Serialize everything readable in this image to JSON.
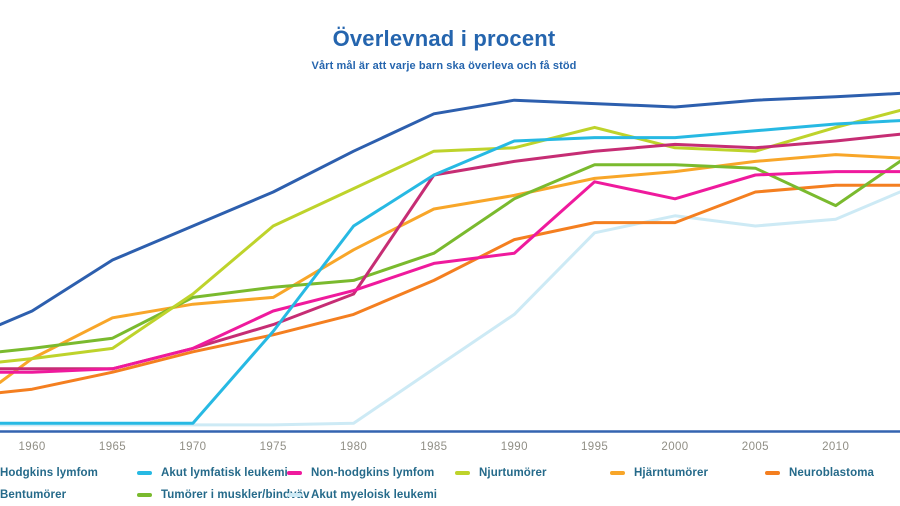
{
  "chart": {
    "title": "Överlevnad i procent",
    "subtitle": "Vårt mål är att varje barn ska överleva och få stöd"
  },
  "colors": {
    "title_text": "#2565ae",
    "subtitle_text": "#2565ae",
    "axis_line": "#3464b0",
    "tick_label": "#908e85",
    "legend_text": "#256a8a"
  },
  "chart_data": {
    "type": "line",
    "x": [
      1958,
      1960,
      1965,
      1970,
      1975,
      1980,
      1985,
      1990,
      1995,
      2000,
      2005,
      2010,
      2014
    ],
    "x_ticks": [
      "1960",
      "1965",
      "1970",
      "1975",
      "1980",
      "1985",
      "1990",
      "1995",
      "2000",
      "2005",
      "2010"
    ],
    "x_range": [
      1958,
      2014
    ],
    "ylim": [
      0,
      100
    ],
    "y_axis_labels_visible": false,
    "grid": false,
    "legend_position": "bottom",
    "title": "Överlevnad i procent",
    "subtitle": "Vårt mål är att varje barn ska överleva och få stöd",
    "unit": "procent",
    "series": [
      {
        "name": "Akut myeloisk leukemi",
        "color": "#cdeaf5",
        "values": [
          1.5,
          1.5,
          1.5,
          1.5,
          1.5,
          2,
          18,
          34,
          58,
          63,
          60,
          62,
          70
        ]
      },
      {
        "name": "Hjärntumörer",
        "color": "#f8a629",
        "values": [
          14,
          21,
          33,
          37,
          39,
          53,
          65,
          69,
          74,
          76,
          79,
          81,
          80
        ]
      },
      {
        "name": "Neuroblastoma",
        "color": "#f47f20",
        "values": [
          11,
          12,
          17,
          23,
          28,
          34,
          44,
          56,
          61,
          61,
          70,
          72,
          72
        ]
      },
      {
        "name": "Tumörer i muskler/bindväv",
        "color": "#7aba2e",
        "values": [
          23,
          24,
          27,
          39,
          42,
          44,
          52,
          68,
          78,
          78,
          77,
          66,
          79
        ]
      },
      {
        "name": "Njurtumörer",
        "color": "#bed32b",
        "values": [
          20,
          21,
          24,
          40,
          60,
          71,
          82,
          83,
          89,
          83,
          82,
          89,
          94
        ]
      },
      {
        "name": "Bentumörer",
        "color": "#c62d74",
        "values": [
          18,
          18,
          18,
          24,
          31,
          40,
          75,
          79,
          82,
          84,
          83,
          85,
          87
        ]
      },
      {
        "name": "Non-hodgkins lymfom",
        "color": "#ef1a9d",
        "values": [
          17,
          17,
          18,
          24,
          35,
          41,
          49,
          52,
          73,
          68,
          75,
          76,
          76
        ]
      },
      {
        "name": "Akut lymfatisk leukemi",
        "color": "#27b9e3",
        "values": [
          2,
          2,
          2,
          2,
          29,
          60,
          75,
          85,
          86,
          86,
          88,
          90,
          91
        ]
      },
      {
        "name": "Hodgkins lymfom",
        "color": "#2d5fae",
        "values": [
          31,
          35,
          50,
          60,
          70,
          82,
          93,
          97,
          96,
          95,
          97,
          98,
          99
        ]
      }
    ]
  },
  "legend": {
    "rows": [
      [
        {
          "label": "Hodgkins lymfom",
          "color": "#2d5fae"
        },
        {
          "label": "Akut lymfatisk leukemi",
          "color": "#27b9e3"
        },
        {
          "label": "Non-hodgkins lymfom",
          "color": "#ef1a9d"
        },
        {
          "label": "Njurtumörer",
          "color": "#bed32b"
        },
        {
          "label": "Hjärntumörer",
          "color": "#f8a629"
        },
        {
          "label": "Neuroblastoma",
          "color": "#f47f20"
        }
      ],
      [
        {
          "label": "Bentumörer",
          "color": "#c62d74"
        },
        {
          "label": "Tumörer i muskler/bindväv",
          "color": "#7aba2e"
        },
        {
          "label": "Akut myeloisk leukemi",
          "color": "#cdeaf5"
        }
      ]
    ]
  }
}
